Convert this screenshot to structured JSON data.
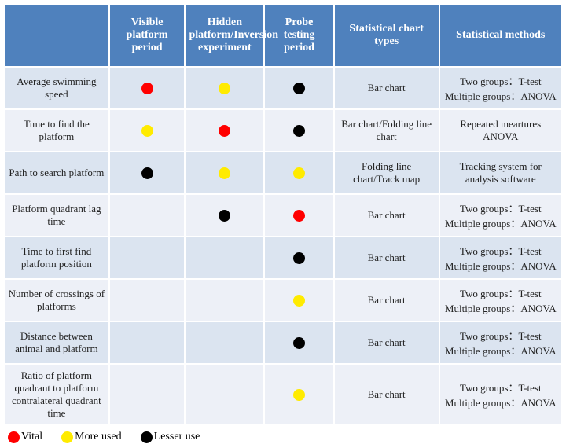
{
  "colors": {
    "vital": "#ff0000",
    "more_used": "#ffeb00",
    "lesser_use": "#000000",
    "header_bg": "#4f81bd",
    "row_even": "#dbe4f0",
    "row_odd": "#edf0f7"
  },
  "headers": [
    "",
    "Visible platform period",
    "Hidden platform/Inversion experiment",
    "Probe testing period",
    "Statistical chart types",
    "Statistical methods"
  ],
  "rows": [
    {
      "label": "Average swimming speed",
      "marks": [
        "vital",
        "more_used",
        "lesser_use"
      ],
      "chart": "Bar chart",
      "method": "Two groups：T-test\nMultiple groups：ANOVA"
    },
    {
      "label": "Time to find the platform",
      "marks": [
        "more_used",
        "vital",
        "lesser_use"
      ],
      "chart": "Bar chart/Folding line chart",
      "method": "Repeated meartures ANOVA"
    },
    {
      "label": "Path to search platform",
      "marks": [
        "lesser_use",
        "more_used",
        "more_used"
      ],
      "chart": "Folding line chart/Track map",
      "method": "Tracking system for analysis software"
    },
    {
      "label": "Platform quadrant lag time",
      "marks": [
        "",
        "lesser_use",
        "vital"
      ],
      "chart": "Bar chart",
      "method": "Two groups：T-test\nMultiple groups：ANOVA"
    },
    {
      "label": "Time to first find platform position",
      "marks": [
        "",
        "",
        "lesser_use"
      ],
      "chart": "Bar chart",
      "method": "Two groups：T-test\nMultiple groups：ANOVA"
    },
    {
      "label": "Number of crossings of platforms",
      "marks": [
        "",
        "",
        "more_used"
      ],
      "chart": "Bar chart",
      "method": "Two groups：T-test\nMultiple groups：ANOVA"
    },
    {
      "label": "Distance between animal and platform",
      "marks": [
        "",
        "",
        "lesser_use"
      ],
      "chart": "Bar chart",
      "method": "Two groups：T-test\nMultiple groups：ANOVA"
    },
    {
      "label": "Ratio of platform quadrant to platform contralateral quadrant time",
      "marks": [
        "",
        "",
        "more_used"
      ],
      "chart": "Bar chart",
      "method": "Two groups：T-test\nMultiple groups：ANOVA"
    }
  ],
  "legend": [
    {
      "key": "vital",
      "label": "Vital"
    },
    {
      "key": "more_used",
      "label": "More used"
    },
    {
      "key": "lesser_use",
      "label": "Lesser use"
    }
  ]
}
